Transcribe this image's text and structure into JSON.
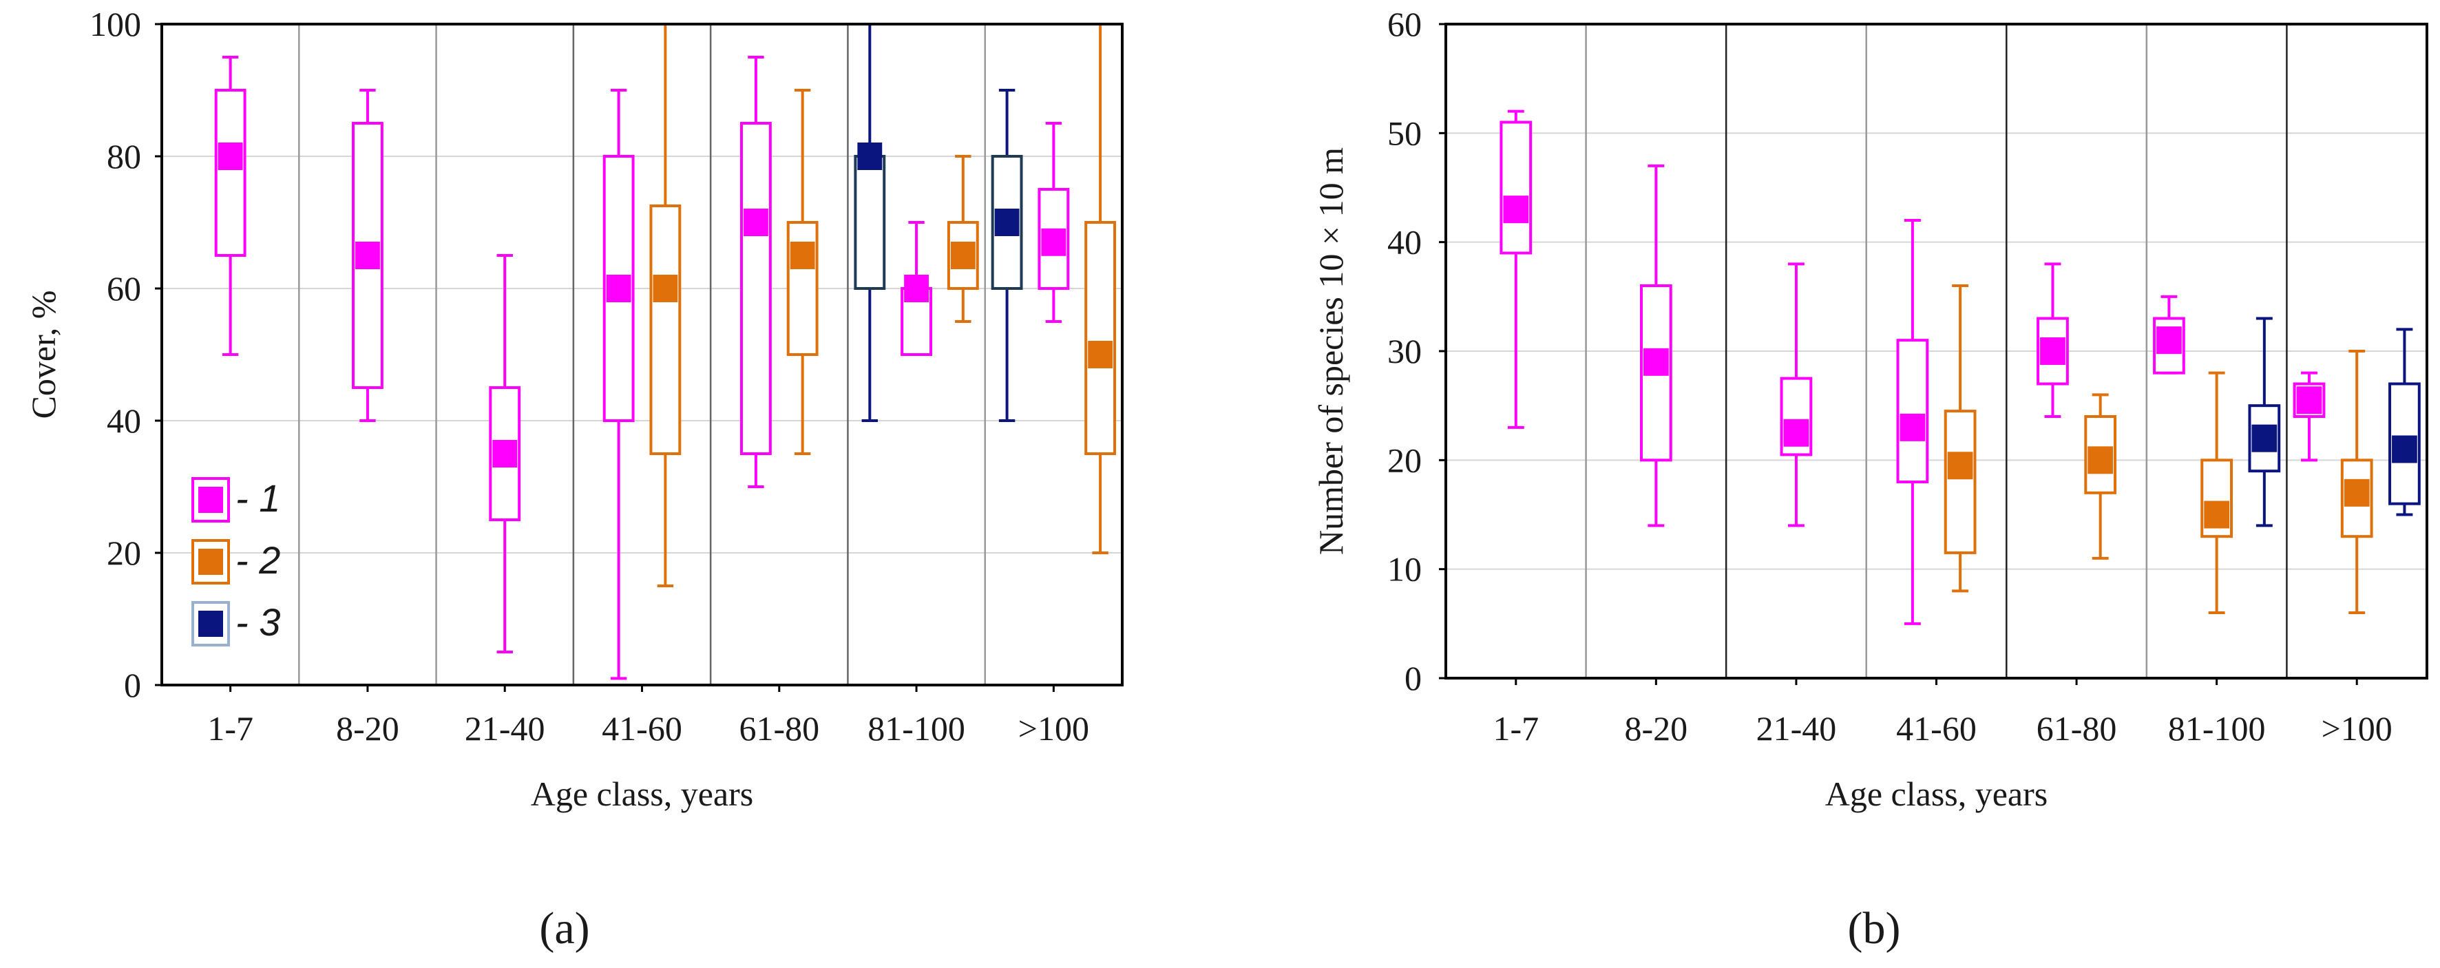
{
  "colors": {
    "1": "#ff00ff",
    "2": "#e0700a",
    "3": "#0a1580",
    "grid": "#d6d6d6",
    "separator": "#555555",
    "axis": "#000000"
  },
  "legend": {
    "items": [
      {
        "group": "1",
        "label": "- 1"
      },
      {
        "group": "2",
        "label": "- 2"
      },
      {
        "group": "3",
        "label": "- 3"
      }
    ]
  },
  "chart_data": [
    {
      "type": "box",
      "panel_label": "(a)",
      "xlabel": "Age class, years",
      "ylabel": "Cover, %",
      "ylim": [
        0,
        100
      ],
      "yticks": [
        0,
        20,
        40,
        60,
        80,
        100
      ],
      "categories": [
        "1-7",
        "8-20",
        "21-40",
        "41-60",
        "61-80",
        "81-100",
        ">100"
      ],
      "grid": true,
      "legend_position": "bottom-left",
      "boxes": [
        {
          "category": "1-7",
          "group": "1",
          "min": 50,
          "q1": 65,
          "median": 80,
          "q3": 90,
          "max": 95
        },
        {
          "category": "8-20",
          "group": "1",
          "min": 40,
          "q1": 45,
          "median": 65,
          "q3": 85,
          "max": 90
        },
        {
          "category": "21-40",
          "group": "1",
          "min": 5,
          "q1": 25,
          "median": 35,
          "q3": 45,
          "max": 65
        },
        {
          "category": "41-60",
          "group": "1",
          "min": 1,
          "q1": 40,
          "median": 60,
          "q3": 80,
          "max": 90
        },
        {
          "category": "41-60",
          "group": "2",
          "min": 15,
          "q1": 35,
          "median": 60,
          "q3": 72.5,
          "max": 100
        },
        {
          "category": "61-80",
          "group": "1",
          "min": 30,
          "q1": 35,
          "median": 70,
          "q3": 85,
          "max": 95
        },
        {
          "category": "61-80",
          "group": "2",
          "min": 35,
          "q1": 50,
          "median": 65,
          "q3": 70,
          "max": 90
        },
        {
          "category": "81-100",
          "group": "3",
          "min": 40,
          "q1": 60,
          "median": 80,
          "q3": 80,
          "max": 100
        },
        {
          "category": "81-100",
          "group": "1",
          "min": 50,
          "q1": 50,
          "median": 60,
          "q3": 60,
          "max": 70
        },
        {
          "category": "81-100",
          "group": "2",
          "min": 55,
          "q1": 60,
          "median": 65,
          "q3": 70,
          "max": 80
        },
        {
          "category": ">100",
          "group": "3",
          "min": 40,
          "q1": 60,
          "median": 70,
          "q3": 80,
          "max": 90
        },
        {
          "category": ">100",
          "group": "1",
          "min": 55,
          "q1": 60,
          "median": 67,
          "q3": 75,
          "max": 85
        },
        {
          "category": ">100",
          "group": "2",
          "min": 20,
          "q1": 35,
          "median": 50,
          "q3": 70,
          "max": 100
        }
      ]
    },
    {
      "type": "box",
      "panel_label": "(b)",
      "xlabel": "Age class, years",
      "ylabel": "Number of species 10 × 10 m",
      "ylim": [
        0,
        60
      ],
      "yticks": [
        0,
        10,
        20,
        30,
        40,
        50,
        60
      ],
      "categories": [
        "1-7",
        "8-20",
        "21-40",
        "41-60",
        "61-80",
        "81-100",
        ">100"
      ],
      "grid": true,
      "boxes": [
        {
          "category": "1-7",
          "group": "1",
          "min": 23,
          "q1": 39,
          "median": 43,
          "q3": 51,
          "max": 52
        },
        {
          "category": "8-20",
          "group": "1",
          "min": 14,
          "q1": 20,
          "median": 29,
          "q3": 36,
          "max": 47
        },
        {
          "category": "21-40",
          "group": "1",
          "min": 14,
          "q1": 20.5,
          "median": 22.5,
          "q3": 27.5,
          "max": 38
        },
        {
          "category": "41-60",
          "group": "1",
          "min": 5,
          "q1": 18,
          "median": 23,
          "q3": 31,
          "max": 42
        },
        {
          "category": "41-60",
          "group": "2",
          "min": 8,
          "q1": 11.5,
          "median": 19.5,
          "q3": 24.5,
          "max": 36
        },
        {
          "category": "61-80",
          "group": "1",
          "min": 24,
          "q1": 27,
          "median": 30,
          "q3": 33,
          "max": 38
        },
        {
          "category": "61-80",
          "group": "2",
          "min": 11,
          "q1": 17,
          "median": 20,
          "q3": 24,
          "max": 26
        },
        {
          "category": "81-100",
          "group": "1",
          "min": 28,
          "q1": 28,
          "median": 31,
          "q3": 33,
          "max": 35
        },
        {
          "category": "81-100",
          "group": "2",
          "min": 6,
          "q1": 13,
          "median": 15,
          "q3": 20,
          "max": 28
        },
        {
          "category": "81-100",
          "group": "3",
          "min": 14,
          "q1": 19,
          "median": 22,
          "q3": 25,
          "max": 33
        },
        {
          "category": ">100",
          "group": "1",
          "min": 20,
          "q1": 24,
          "median": 25.5,
          "q3": 27,
          "max": 28
        },
        {
          "category": ">100",
          "group": "2",
          "min": 6,
          "q1": 13,
          "median": 17,
          "q3": 20,
          "max": 30
        },
        {
          "category": ">100",
          "group": "3",
          "min": 15,
          "q1": 16,
          "median": 21,
          "q3": 27,
          "max": 32
        }
      ]
    }
  ]
}
